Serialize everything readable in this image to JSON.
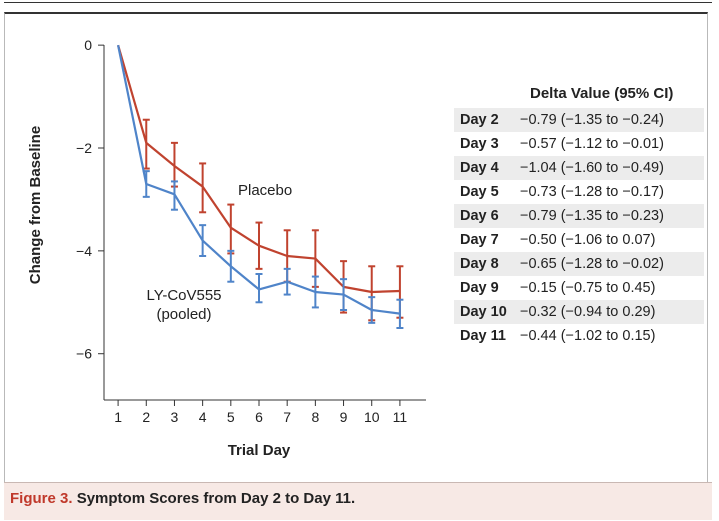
{
  "caption": {
    "figure_number": "Figure 3.",
    "text": "Symptom Scores from Day 2 to Day 11."
  },
  "colors": {
    "placebo": "#c0432f",
    "treatment": "#4f84c9",
    "axis": "#333333",
    "caption_bg": "#f7e9e5"
  },
  "chart_data": {
    "type": "line",
    "xlabel": "Trial Day",
    "ylabel": "Change from Baseline",
    "x": [
      1,
      2,
      3,
      4,
      5,
      6,
      7,
      8,
      9,
      10,
      11
    ],
    "xlim": [
      0.5,
      11.5
    ],
    "ylim": [
      -6.9,
      0.1
    ],
    "yticks": [
      0,
      -2,
      -4,
      -6
    ],
    "yticklabels": [
      "0",
      "−2",
      "−4",
      "−6"
    ],
    "series": [
      {
        "name": "Placebo",
        "values": [
          0,
          -1.9,
          -2.35,
          -2.75,
          -3.55,
          -3.9,
          -4.1,
          -4.15,
          -4.7,
          -4.8,
          -4.78
        ],
        "err_low": [
          0,
          -2.4,
          -2.75,
          -3.25,
          -4.05,
          -4.35,
          -4.6,
          -4.7,
          -5.2,
          -5.35,
          -5.3
        ],
        "err_high": [
          0,
          -1.45,
          -1.9,
          -2.3,
          -3.1,
          -3.45,
          -3.6,
          -3.6,
          -4.2,
          -4.3,
          -4.3
        ]
      },
      {
        "name": "LY-CoV555\n(pooled)",
        "values": [
          0,
          -2.7,
          -2.9,
          -3.8,
          -4.3,
          -4.75,
          -4.6,
          -4.8,
          -4.85,
          -5.15,
          -5.22
        ],
        "err_low": [
          0,
          -2.95,
          -3.2,
          -4.1,
          -4.6,
          -5.0,
          -4.85,
          -5.1,
          -5.15,
          -5.4,
          -5.5
        ],
        "err_high": [
          0,
          -2.45,
          -2.65,
          -3.5,
          -4.0,
          -4.45,
          -4.35,
          -4.5,
          -4.55,
          -4.9,
          -4.95
        ]
      }
    ],
    "table": {
      "title": "Delta Value (95% CI)",
      "rows": [
        {
          "day": "Day 2",
          "value": "−0.79 (−1.35 to −0.24)"
        },
        {
          "day": "Day 3",
          "value": "−0.57 (−1.12 to −0.01)"
        },
        {
          "day": "Day 4",
          "value": "−1.04 (−1.60 to −0.49)"
        },
        {
          "day": "Day 5",
          "value": "−0.73 (−1.28 to −0.17)"
        },
        {
          "day": "Day 6",
          "value": "−0.79 (−1.35 to −0.23)"
        },
        {
          "day": "Day 7",
          "value": "−0.50 (−1.06 to 0.07)"
        },
        {
          "day": "Day 8",
          "value": "−0.65 (−1.28 to −0.02)"
        },
        {
          "day": "Day 9",
          "value": "−0.15 (−0.75 to 0.45)"
        },
        {
          "day": "Day 10",
          "value": "−0.32 (−0.94 to 0.29)"
        },
        {
          "day": "Day 11",
          "value": "−0.44 (−1.02 to 0.15)"
        }
      ]
    }
  }
}
